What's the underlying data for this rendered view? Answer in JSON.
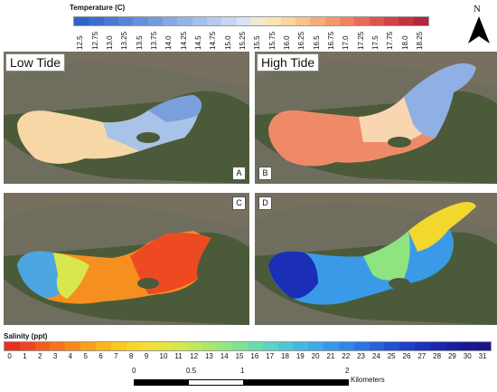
{
  "temperature_legend": {
    "title": "Temperature (C)",
    "labels": [
      "12.5",
      "12.75",
      "13.0",
      "13.25",
      "13.5",
      "13.75",
      "14.0",
      "14.25",
      "14.5",
      "14.75",
      "15.0",
      "15.25",
      "15.5",
      "15.75",
      "16.0",
      "16.25",
      "16.5",
      "16.75",
      "17.0",
      "17.25",
      "17.5",
      "17.75",
      "18.0",
      "18.25"
    ],
    "colors": [
      "#2e63c9",
      "#3a6fce",
      "#4a7bd2",
      "#5786d6",
      "#6691da",
      "#749cdd",
      "#84a8e2",
      "#94b4e6",
      "#a3c0e9",
      "#b4cbed",
      "#c5d6f0",
      "#d9e2f2",
      "#f3e8d0",
      "#fde3b4",
      "#fcd6a0",
      "#fac28a",
      "#f6ad78",
      "#f39a6b",
      "#ef8262",
      "#e96c58",
      "#de554e",
      "#d14346",
      "#c2343f",
      "#b0283a"
    ]
  },
  "salinity_legend": {
    "title": "Salinity (ppt)",
    "labels": [
      "0",
      "1",
      "2",
      "3",
      "4",
      "5",
      "6",
      "7",
      "8",
      "9",
      "10",
      "11",
      "12",
      "13",
      "14",
      "15",
      "16",
      "17",
      "18",
      "19",
      "20",
      "21",
      "22",
      "23",
      "24",
      "25",
      "26",
      "27",
      "28",
      "29",
      "30",
      "31"
    ],
    "colors": [
      "#e8301f",
      "#ee4620",
      "#f35d1e",
      "#f7721c",
      "#f98a1a",
      "#fba01a",
      "#fcb41b",
      "#fdc820",
      "#fbd62a",
      "#f3e034",
      "#e6e53f",
      "#d2e84c",
      "#bde95c",
      "#a8e96c",
      "#93e77f",
      "#7fe394",
      "#6cdcab",
      "#5dd3c0",
      "#50c6d3",
      "#46b8e0",
      "#3fa8e6",
      "#3898e8",
      "#3186e8",
      "#2b74e4",
      "#2662dc",
      "#2150d2",
      "#1e40c7",
      "#1c33bb",
      "#1a28ad",
      "#19209e",
      "#181a90",
      "#17158a"
    ]
  },
  "panels": [
    {
      "letter": "A",
      "title": "Low Tide"
    },
    {
      "letter": "B",
      "title": "High Tide"
    },
    {
      "letter": "C",
      "title": ""
    },
    {
      "letter": "D",
      "title": ""
    }
  ],
  "north_arrow": {
    "label": "N",
    "icon": "north-arrow-icon"
  },
  "scale_bar": {
    "ticks": [
      "0",
      "0.5",
      "1",
      "2"
    ],
    "unit": "Kilometers"
  }
}
